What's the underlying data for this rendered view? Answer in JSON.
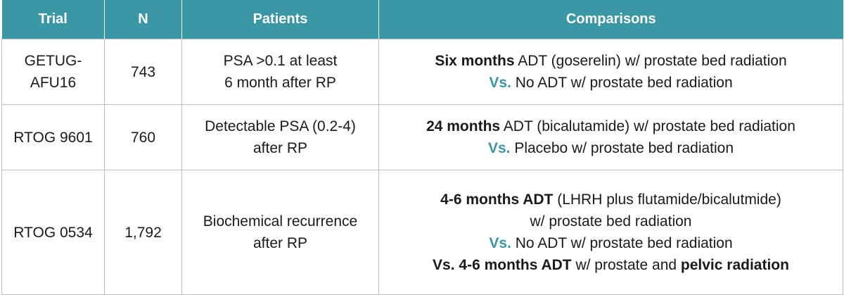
{
  "header": {
    "trial": "Trial",
    "n": "N",
    "patients": "Patients",
    "comparisons": "Comparisons"
  },
  "rows": [
    {
      "trial_line1": "GETUG-",
      "trial_line2": "AFU16",
      "n": "743",
      "patients_line1": "PSA >0.1 at least",
      "patients_line2": "6 month after RP",
      "c1_bold": "Six months",
      "c1_rest": " ADT (goserelin) w/ prostate bed radiation",
      "c2_vs": "Vs.",
      "c2_rest": " No ADT w/ prostate bed radiation"
    },
    {
      "trial": "RTOG 9601",
      "n": "760",
      "patients_line1": "Detectable PSA (0.2-4)",
      "patients_line2": "after RP",
      "c1_bold": "24 months",
      "c1_rest": " ADT (bicalutamide) w/ prostate bed radiation",
      "c2_vs": "Vs.",
      "c2_rest": " Placebo w/ prostate bed radiation"
    },
    {
      "trial": "RTOG 0534",
      "n": "1,792",
      "patients_line1": "Biochemical recurrence",
      "patients_line2": "after RP",
      "c1_bold": "4-6 months ADT",
      "c1_rest": " (LHRH plus flutamide/bicalutmide)",
      "c2": "w/ prostate bed radiation",
      "c3_vs": "Vs.",
      "c3_rest": " No ADT w/ prostate bed radiation",
      "c4_bold": "Vs. 4-6 months ADT",
      "c4_mid": " w/ prostate and ",
      "c4_bold2": "pelvic radiation"
    }
  ],
  "colors": {
    "header_bg": "#3a97a6",
    "vs_text": "#3a97a6",
    "border": "#bfbfbf"
  }
}
